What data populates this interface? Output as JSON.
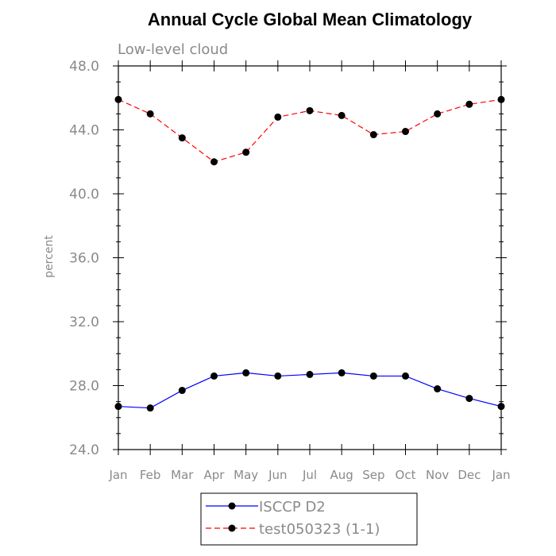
{
  "chart_data": {
    "type": "line",
    "title": "Annual Cycle Global Mean Climatology",
    "subtitle": "Low-level cloud",
    "ylabel": "percent",
    "xlabel": "",
    "categories": [
      "Jan",
      "Feb",
      "Mar",
      "Apr",
      "May",
      "Jun",
      "Jul",
      "Aug",
      "Sep",
      "Oct",
      "Nov",
      "Dec",
      "Jan"
    ],
    "ylim": [
      24.0,
      48.0
    ],
    "yticks": [
      "24.0",
      "28.0",
      "32.0",
      "36.0",
      "40.0",
      "44.0",
      "48.0"
    ],
    "grid": false,
    "legend_placement": "bottom",
    "series": [
      {
        "name": "ISCCP D2",
        "color": "#0000ff",
        "line_style": "solid",
        "marker": "filled-circle",
        "values": [
          26.7,
          26.6,
          27.7,
          28.6,
          28.8,
          28.6,
          28.7,
          28.8,
          28.6,
          28.6,
          27.8,
          27.2,
          26.7
        ]
      },
      {
        "name": "test050323 (1-1)",
        "color": "#ff0000",
        "line_style": "dashed",
        "marker": "filled-circle",
        "values": [
          45.9,
          45.0,
          43.5,
          42.0,
          42.6,
          44.8,
          45.2,
          44.9,
          43.7,
          43.9,
          45.0,
          45.6,
          45.9
        ]
      }
    ]
  }
}
